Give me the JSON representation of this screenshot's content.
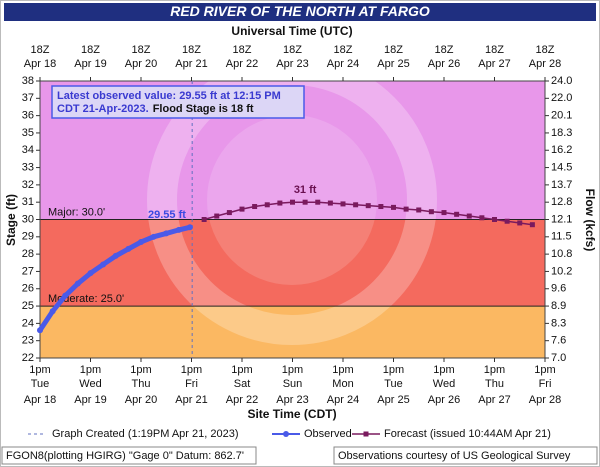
{
  "chart_data": {
    "type": "line",
    "title": "RED RIVER OF THE NORTH AT FARGO",
    "top_axis_label": "Universal Time (UTC)",
    "xlabel": "Site Time (CDT)",
    "ylabel": "Stage (ft)",
    "y2label": "Flow (kcfs)",
    "background_color": "#e897ea",
    "xlim": [
      "2023-04-18T13:00",
      "2023-04-28T13:00"
    ],
    "xticks": [
      {
        "value": "2023-04-18T13:00",
        "label": "1pm",
        "weekday": "Tue",
        "date": "Apr 18"
      },
      {
        "value": "2023-04-19T13:00",
        "label": "1pm",
        "weekday": "Wed",
        "date": "Apr 19"
      },
      {
        "value": "2023-04-20T13:00",
        "label": "1pm",
        "weekday": "Thu",
        "date": "Apr 20"
      },
      {
        "value": "2023-04-21T13:00",
        "label": "1pm",
        "weekday": "Fri",
        "date": "Apr 21"
      },
      {
        "value": "2023-04-22T13:00",
        "label": "1pm",
        "weekday": "Sat",
        "date": "Apr 22"
      },
      {
        "value": "2023-04-23T13:00",
        "label": "1pm",
        "weekday": "Sun",
        "date": "Apr 23"
      },
      {
        "value": "2023-04-24T13:00",
        "label": "1pm",
        "weekday": "Mon",
        "date": "Apr 24"
      },
      {
        "value": "2023-04-25T13:00",
        "label": "1pm",
        "weekday": "Tue",
        "date": "Apr 25"
      },
      {
        "value": "2023-04-26T13:00",
        "label": "1pm",
        "weekday": "Wed",
        "date": "Apr 26"
      },
      {
        "value": "2023-04-27T13:00",
        "label": "1pm",
        "weekday": "Thu",
        "date": "Apr 27"
      },
      {
        "value": "2023-04-28T13:00",
        "label": "1pm",
        "weekday": "Fri",
        "date": "Apr 28"
      }
    ],
    "top_xticks": [
      {
        "value": "2023-04-18T13:00",
        "label": "18Z",
        "date": "Apr 18"
      },
      {
        "value": "2023-04-19T13:00",
        "label": "18Z",
        "date": "Apr 19"
      },
      {
        "value": "2023-04-20T13:00",
        "label": "18Z",
        "date": "Apr 20"
      },
      {
        "value": "2023-04-21T13:00",
        "label": "18Z",
        "date": "Apr 21"
      },
      {
        "value": "2023-04-22T13:00",
        "label": "18Z",
        "date": "Apr 22"
      },
      {
        "value": "2023-04-23T13:00",
        "label": "18Z",
        "date": "Apr 23"
      },
      {
        "value": "2023-04-24T13:00",
        "label": "18Z",
        "date": "Apr 24"
      },
      {
        "value": "2023-04-25T13:00",
        "label": "18Z",
        "date": "Apr 25"
      },
      {
        "value": "2023-04-26T13:00",
        "label": "18Z",
        "date": "Apr 26"
      },
      {
        "value": "2023-04-27T13:00",
        "label": "18Z",
        "date": "Apr 27"
      },
      {
        "value": "2023-04-28T13:00",
        "label": "18Z",
        "date": "Apr 28"
      }
    ],
    "ylim": [
      22,
      38
    ],
    "yticks": [
      22,
      23,
      24,
      25,
      26,
      27,
      28,
      29,
      30,
      31,
      32,
      33,
      34,
      35,
      36,
      37,
      38
    ],
    "y2ticks": [
      {
        "value": 7,
        "label": "7.0"
      },
      {
        "value": 7.6,
        "label": "7.6"
      },
      {
        "value": 8.3,
        "label": "8.3"
      },
      {
        "value": 8.9,
        "label": "8.9"
      },
      {
        "value": 9.6,
        "label": "9.6"
      },
      {
        "value": 10.2,
        "label": "10.2"
      },
      {
        "value": 10.8,
        "label": "10.8"
      },
      {
        "value": 11.5,
        "label": "11.5"
      },
      {
        "value": 12.1,
        "label": "12.1"
      },
      {
        "value": 12.8,
        "label": "12.8"
      },
      {
        "value": 13.7,
        "label": "13.7"
      },
      {
        "value": 14.5,
        "label": "14.5"
      },
      {
        "value": 16.2,
        "label": "16.2"
      },
      {
        "value": 18.3,
        "label": "18.3"
      },
      {
        "value": 20.1,
        "label": "20.1"
      },
      {
        "value": 22,
        "label": "22.0"
      },
      {
        "value": 24,
        "label": "24.0"
      }
    ],
    "flood_categories": [
      {
        "label": "Major: 30.0'",
        "value": 30,
        "color": "#f46a5e"
      },
      {
        "label": "Moderate: 25.0'",
        "value": 25,
        "color": "#fbb862"
      }
    ],
    "info": {
      "line1": "Latest observed value: 29.55 ft at 12:15 PM",
      "line2": "CDT 21-Apr-2023.",
      "flood_stage": "Flood Stage is 18 ft"
    },
    "graph_created": {
      "label": "Graph Created (1:19PM Apr 21, 2023)",
      "x": "2023-04-21T13:19"
    },
    "series": [
      {
        "name": "Observed",
        "color": "#4a5ae8",
        "x": [
          "2023-04-18T13:00",
          "2023-04-18T19:00",
          "2023-04-19T01:00",
          "2023-04-19T07:00",
          "2023-04-19T13:00",
          "2023-04-19T19:00",
          "2023-04-20T01:00",
          "2023-04-20T07:00",
          "2023-04-20T13:00",
          "2023-04-20T19:00",
          "2023-04-21T01:00",
          "2023-04-21T07:00",
          "2023-04-21T12:15"
        ],
        "values": [
          23.6,
          24.7,
          25.6,
          26.3,
          26.9,
          27.4,
          27.9,
          28.3,
          28.7,
          29.0,
          29.2,
          29.4,
          29.55
        ]
      },
      {
        "name": "Forecast (issued 10:44AM Apr 21)",
        "color": "#7a1a5e",
        "x": [
          "2023-04-21T19:00",
          "2023-04-22T01:00",
          "2023-04-22T07:00",
          "2023-04-22T13:00",
          "2023-04-22T19:00",
          "2023-04-23T01:00",
          "2023-04-23T07:00",
          "2023-04-23T13:00",
          "2023-04-23T19:00",
          "2023-04-24T01:00",
          "2023-04-24T07:00",
          "2023-04-24T13:00",
          "2023-04-24T19:00",
          "2023-04-25T01:00",
          "2023-04-25T07:00",
          "2023-04-25T13:00",
          "2023-04-25T19:00",
          "2023-04-26T01:00",
          "2023-04-26T07:00",
          "2023-04-26T13:00",
          "2023-04-26T19:00",
          "2023-04-27T01:00",
          "2023-04-27T07:00",
          "2023-04-27T13:00",
          "2023-04-27T19:00",
          "2023-04-28T01:00",
          "2023-04-28T07:00"
        ],
        "values": [
          30.0,
          30.2,
          30.4,
          30.6,
          30.75,
          30.85,
          30.95,
          31.0,
          31.0,
          31.0,
          30.95,
          30.9,
          30.85,
          30.8,
          30.75,
          30.7,
          30.6,
          30.55,
          30.45,
          30.4,
          30.3,
          30.2,
          30.1,
          30.0,
          29.9,
          29.8,
          29.7
        ]
      }
    ],
    "annotations": [
      {
        "text": "29.55 ft",
        "x": "2023-04-21T12:15",
        "y": 29.55,
        "color": "#3a4ae0"
      },
      {
        "text": "31 ft",
        "x": "2023-04-23T19:00",
        "y": 31,
        "color": "#6a1050"
      }
    ],
    "footer_left": "FGON8(plotting HGIRG) \"Gage 0\" Datum: 862.7'",
    "footer_right": "Observations courtesy of US Geological Survey"
  }
}
